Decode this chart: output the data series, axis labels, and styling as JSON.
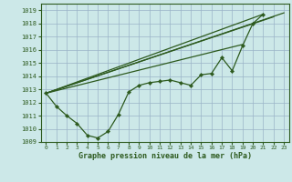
{
  "title": "Graphe pression niveau de la mer (hPa)",
  "bg_color": "#cce8e8",
  "grid_color": "#9ab4c8",
  "line_color": "#2d5a1e",
  "xlim": [
    -0.5,
    23.5
  ],
  "ylim": [
    1009,
    1019.5
  ],
  "xticks": [
    0,
    1,
    2,
    3,
    4,
    5,
    6,
    7,
    8,
    9,
    10,
    11,
    12,
    13,
    14,
    15,
    16,
    17,
    18,
    19,
    20,
    21,
    22,
    23
  ],
  "yticks": [
    1009,
    1010,
    1011,
    1012,
    1013,
    1014,
    1015,
    1016,
    1017,
    1018,
    1019
  ],
  "main_x": [
    0,
    1,
    2,
    3,
    4,
    5,
    6,
    7,
    8,
    9,
    10,
    11,
    12,
    13,
    14,
    15,
    16,
    17,
    18,
    19,
    20,
    21
  ],
  "main_y": [
    1012.7,
    1011.7,
    1011.0,
    1010.4,
    1009.5,
    1009.3,
    1009.8,
    1011.1,
    1012.8,
    1013.3,
    1013.5,
    1013.6,
    1013.7,
    1013.5,
    1013.3,
    1014.1,
    1014.2,
    1015.4,
    1014.4,
    1016.3,
    1018.0,
    1018.7
  ],
  "straight_lines": [
    {
      "x": [
        0,
        23
      ],
      "y": [
        1012.7,
        1018.8
      ]
    },
    {
      "x": [
        0,
        22
      ],
      "y": [
        1012.7,
        1018.5
      ]
    },
    {
      "x": [
        0,
        21
      ],
      "y": [
        1012.7,
        1018.7
      ]
    },
    {
      "x": [
        0,
        19
      ],
      "y": [
        1012.7,
        1016.4
      ]
    }
  ]
}
